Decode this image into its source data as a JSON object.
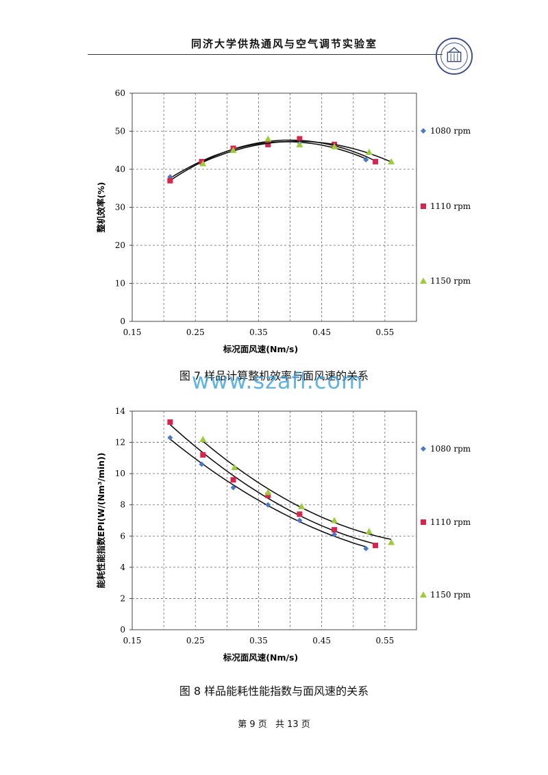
{
  "header": {
    "title": "同济大学供热通风与空气调节实验室"
  },
  "logo": {
    "name": "tongji-university-seal-icon",
    "text": "同济大学 1907 TONGJI UNIVERSITY"
  },
  "watermark": "www.szafl.com",
  "figures": [
    {
      "caption": "图 7   样品计算整机效率与面风速的关系"
    },
    {
      "caption": "图 8   样品能耗性能指数与面风速的关系"
    }
  ],
  "footer": {
    "page": "第 9 页",
    "total": "共 13 页"
  },
  "colors": {
    "series1": "#4a78c2",
    "series2": "#d6264e",
    "series3": "#9dcc3a",
    "grid": "#666666",
    "curve": "#111111"
  },
  "chart_data": [
    {
      "type": "scatter",
      "title": "",
      "xlabel": "标况面风速(Nm/s)",
      "ylabel": "整机效率(%)",
      "xlim": [
        0.15,
        0.6
      ],
      "ylim": [
        0,
        60
      ],
      "xticks": [
        "0.15",
        "0.25",
        "0.35",
        "0.45",
        "0.55"
      ],
      "xtick_values": [
        0.15,
        0.25,
        0.35,
        0.45,
        0.55
      ],
      "yticks": [
        "0",
        "10",
        "20",
        "30",
        "40",
        "50",
        "60"
      ],
      "ytick_values": [
        0,
        10,
        20,
        30,
        40,
        50,
        60
      ],
      "grid": true,
      "legend_position": "right",
      "trendlines": true,
      "series": [
        {
          "name": "1080 rpm",
          "marker": "diamond",
          "x": [
            0.21,
            0.26,
            0.31,
            0.365,
            0.415,
            0.47,
            0.52
          ],
          "y": [
            38,
            41.5,
            45.5,
            47,
            47,
            46,
            42.5
          ]
        },
        {
          "name": "1110 rpm",
          "marker": "square",
          "x": [
            0.21,
            0.26,
            0.31,
            0.365,
            0.415,
            0.47,
            0.535
          ],
          "y": [
            37,
            42,
            45.5,
            46.5,
            48,
            46.5,
            42
          ]
        },
        {
          "name": "1150 rpm",
          "marker": "triangle",
          "x": [
            0.262,
            0.31,
            0.365,
            0.415,
            0.47,
            0.525,
            0.56
          ],
          "y": [
            41.5,
            45,
            48,
            46.5,
            46,
            44.5,
            42
          ]
        }
      ]
    },
    {
      "type": "scatter",
      "title": "",
      "xlabel": "标况面风速(Nm/s)",
      "ylabel": "能耗性能指数EPI(W/(Nm³/min))",
      "xlim": [
        0.15,
        0.6
      ],
      "ylim": [
        0,
        14
      ],
      "xticks": [
        "0.15",
        "0.25",
        "0.35",
        "0.45",
        "0.55"
      ],
      "xtick_values": [
        0.15,
        0.25,
        0.35,
        0.45,
        0.55
      ],
      "yticks": [
        "0",
        "2",
        "4",
        "6",
        "8",
        "10",
        "12",
        "14"
      ],
      "ytick_values": [
        0,
        2,
        4,
        6,
        8,
        10,
        12,
        14
      ],
      "grid": true,
      "legend_position": "right",
      "trendlines": true,
      "series": [
        {
          "name": "1080 rpm",
          "marker": "diamond",
          "x": [
            0.21,
            0.26,
            0.31,
            0.365,
            0.415,
            0.47,
            0.52
          ],
          "y": [
            12.3,
            10.6,
            9.1,
            8.0,
            7.0,
            6.1,
            5.2
          ]
        },
        {
          "name": "1110 rpm",
          "marker": "square",
          "x": [
            0.21,
            0.262,
            0.31,
            0.365,
            0.415,
            0.47,
            0.535
          ],
          "y": [
            13.3,
            11.2,
            9.6,
            8.6,
            7.4,
            6.4,
            5.4
          ]
        },
        {
          "name": "1150 rpm",
          "marker": "triangle",
          "x": [
            0.262,
            0.312,
            0.365,
            0.418,
            0.47,
            0.525,
            0.56
          ],
          "y": [
            12.2,
            10.4,
            8.8,
            7.9,
            7.0,
            6.3,
            5.6
          ]
        }
      ]
    }
  ]
}
